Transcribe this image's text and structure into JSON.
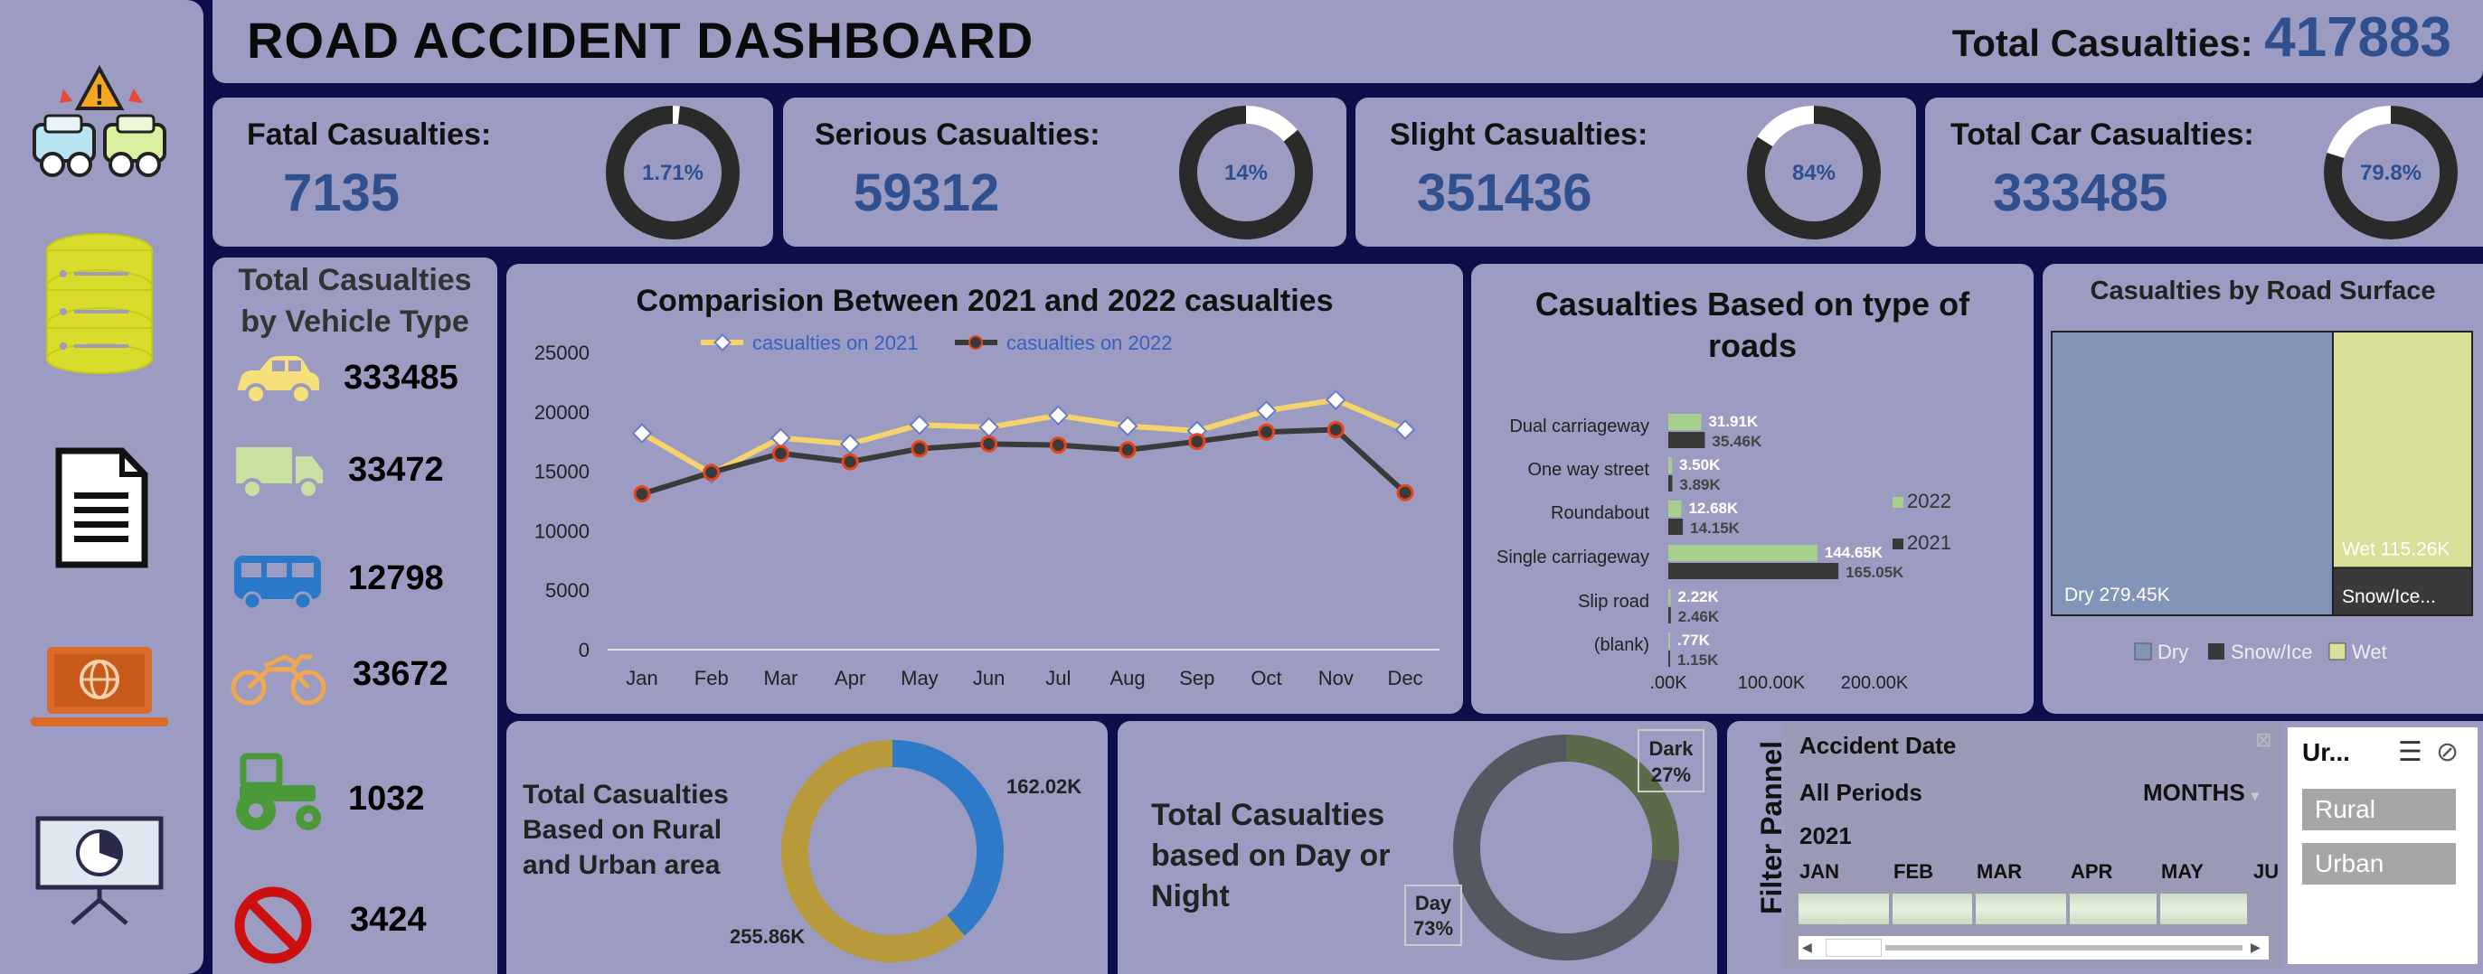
{
  "header": {
    "title": "ROAD ACCIDENT DASHBOARD",
    "total_label": "Total Casualties:",
    "total_value": "417883"
  },
  "sidebar": {
    "icons": [
      "car-crash-icon",
      "database-icon",
      "document-icon",
      "laptop-globe-icon",
      "presentation-chart-icon"
    ]
  },
  "kpis": [
    {
      "label": "Fatal Casualties:",
      "value": "7135",
      "pct_label": "1.71%",
      "pct": 0.0171,
      "ring": "#2a2a2a",
      "fill": "#ffffff"
    },
    {
      "label": "Serious Casualties:",
      "value": "59312",
      "pct_label": "14%",
      "pct": 0.14,
      "ring": "#2a2a2a",
      "fill": "#ffffff"
    },
    {
      "label": "Slight Casualties:",
      "value": "351436",
      "pct_label": "84%",
      "pct": 0.84,
      "ring": "#ffffff",
      "fill": "#2a2a2a"
    },
    {
      "label": "Total Car Casualties:",
      "value": "333485",
      "pct_label": "79.8%",
      "pct": 0.798,
      "ring": "#ffffff",
      "fill": "#2a2a2a"
    }
  ],
  "vehicles": {
    "title_line1": "Total Casualties",
    "title_line2": "by Vehicle Type",
    "items": [
      {
        "icon": "car-icon",
        "value": "333485",
        "color": "#f5e07a"
      },
      {
        "icon": "truck-icon",
        "value": "33472",
        "color": "#c8e0a0"
      },
      {
        "icon": "bus-icon",
        "value": "12798",
        "color": "#2a78c8"
      },
      {
        "icon": "motorbike-icon",
        "value": "33672",
        "color": "#f0a850"
      },
      {
        "icon": "tractor-icon",
        "value": "1032",
        "color": "#4a9a3a"
      },
      {
        "icon": "no-entry-icon",
        "value": "3424",
        "color": "#cc1010"
      }
    ]
  },
  "line_chart": {
    "title": "Comparision Between 2021 and 2022 casualties",
    "legend": [
      "casualties on 2021",
      "casualties on 2022"
    ],
    "y_ticks": [
      "25000",
      "20000",
      "15000",
      "10000",
      "5000",
      "0"
    ]
  },
  "bar_chart": {
    "title_line1": "Casualties Based on type of",
    "title_line2": "roads",
    "legend": [
      "2022",
      "2021"
    ],
    "x_ticks": [
      ".00K",
      "100.00K",
      "200.00K"
    ],
    "labels_2022": [
      "31.91K",
      "3.50K",
      "12.68K",
      "144.65K",
      "2.22K",
      ".77K"
    ],
    "labels_2021": [
      "35.46K",
      "3.89K",
      "14.15K",
      "165.05K",
      "2.46K",
      "1.15K"
    ]
  },
  "treemap": {
    "title": "Casualties by Road Surface",
    "dry_label": "Dry 279.45K",
    "wet_label": "Wet 115.26K",
    "snow_label": "Snow/Ice...",
    "legend": [
      "Dry",
      "Snow/Ice",
      "Wet"
    ]
  },
  "rural_urban": {
    "title_line1": "Total Casualties",
    "title_line2": "Based on Rural",
    "title_line3": "and Urban area",
    "urban_label": "162.02K",
    "rural_label": "255.86K",
    "urban_share": 0.388
  },
  "day_night": {
    "title_line1": "Total Casualties",
    "title_line2": "based on Day or",
    "title_line3": "Night",
    "dark_label": "Dark",
    "dark_pct": "27%",
    "day_label": "Day",
    "day_pct": "73%",
    "dark_share": 0.27
  },
  "filter": {
    "panel_label": "Filter Pannel",
    "timeline_title": "Accident Date",
    "period_label": "All Periods",
    "unit_label": "MONTHS",
    "year": "2021",
    "months": [
      "JAN",
      "FEB",
      "MAR",
      "APR",
      "MAY",
      "JU"
    ],
    "slicer_title": "Ur...",
    "slicer_options": [
      "Rural",
      "Urban"
    ]
  },
  "colors": {
    "bg": "#0c0f4a",
    "panel": "#9c9cc2",
    "kpi_value": "#2f4f8f",
    "line_2021": "#f5d36a",
    "line_2022": "#3a3a3a",
    "bar_2022": "#a8d08d",
    "bar_2021": "#3a3a3a"
  },
  "chart_data": [
    {
      "type": "line",
      "title": "Comparision Between 2021 and 2022 casualties",
      "categories": [
        "Jan",
        "Feb",
        "Mar",
        "Apr",
        "May",
        "Jun",
        "Jul",
        "Aug",
        "Sep",
        "Oct",
        "Nov",
        "Dec"
      ],
      "series": [
        {
          "name": "casualties on 2021",
          "values": [
            18200,
            14800,
            17800,
            17300,
            18900,
            18700,
            19700,
            18800,
            18400,
            20100,
            21000,
            18500
          ]
        },
        {
          "name": "casualties on 2022",
          "values": [
            13100,
            14900,
            16500,
            15800,
            16900,
            17300,
            17200,
            16800,
            17500,
            18300,
            18500,
            13200
          ]
        }
      ],
      "ylim": [
        0,
        25000
      ],
      "grid": false,
      "legend_position": "top"
    },
    {
      "type": "bar",
      "orientation": "horizontal",
      "title": "Casualties Based on type of roads",
      "categories": [
        "Dual carriageway",
        "One way street",
        "Roundabout",
        "Single carriageway",
        "Slip road",
        "(blank)"
      ],
      "series": [
        {
          "name": "2022",
          "values": [
            31.91,
            3.5,
            12.68,
            144.65,
            2.22,
            0.77
          ]
        },
        {
          "name": "2021",
          "values": [
            35.46,
            3.89,
            14.15,
            165.05,
            2.46,
            1.15
          ]
        }
      ],
      "xlim": [
        0,
        200
      ],
      "legend_position": "right"
    },
    {
      "type": "treemap",
      "title": "Casualties by Road Surface",
      "categories": [
        "Dry",
        "Wet",
        "Snow/Ice"
      ],
      "values": [
        279.45,
        115.26,
        23.17
      ],
      "legend_position": "bottom"
    },
    {
      "type": "pie",
      "variant": "donut",
      "categories": [
        "Urban",
        "Rural"
      ],
      "values": [
        162.02,
        255.86
      ]
    },
    {
      "type": "pie",
      "variant": "donut",
      "categories": [
        "Dark",
        "Day"
      ],
      "values": [
        27,
        73
      ]
    }
  ]
}
